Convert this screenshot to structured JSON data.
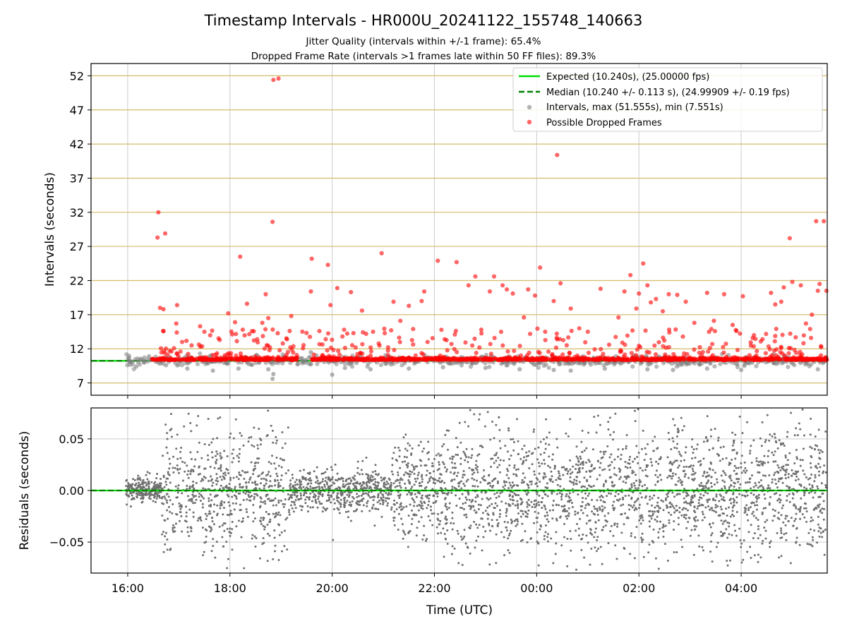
{
  "figure": {
    "title": "Timestamp Intervals - HR000U_20241122_155748_140663",
    "subtitle_1": "Jitter Quality (intervals within +/-1 frame): 65.4%",
    "subtitle_2": "Dropped Frame Rate (intervals >1 frames late within 50 FF files): 89.3%"
  },
  "colors": {
    "expected": "#00e000",
    "median": "#007f00",
    "intervals": "#808080",
    "dropped": "#ff0000",
    "hgrid_top": "#d4bc6a",
    "vgrid": "#cccccc",
    "residual": "#6f6f6f"
  },
  "chart_data": [
    {
      "type": "scatter",
      "panel": "top",
      "ylabel": "Intervals (seconds)",
      "xlim": [
        "15:17",
        "05:41"
      ],
      "ylim": [
        5.2,
        53.8
      ],
      "yticks": [
        "7",
        "12",
        "17",
        "22",
        "27",
        "32",
        "37",
        "42",
        "47",
        "52"
      ],
      "xticks": [
        "16:00",
        "18:00",
        "20:00",
        "22:00",
        "00:00",
        "02:00",
        "04:00"
      ],
      "grid": "horizontal and vertical",
      "legend_position": "top-right",
      "legend": [
        "Expected (10.240s), (25.00000 fps)",
        "Median (10.240 +/- 0.113 s), (24.99909 +/- 0.19 fps)",
        "Intervals, max (51.555s), min (7.551s)",
        "Possible Dropped Frames"
      ],
      "series": [
        {
          "name": "Expected (10.240s), (25.00000 fps)",
          "kind": "hline",
          "y": 10.24
        },
        {
          "name": "Median (10.240 +/- 0.113 s), (24.99909 +/- 0.19 fps)",
          "kind": "hline-dashed",
          "y": 10.24
        },
        {
          "name": "Intervals, max (51.555s), min (7.551s)",
          "kind": "scatter",
          "note": "dense band of points near 10.24 s with spread from ~8 to ~11.5 s",
          "points": [
            [
              "16:10",
              9.4
            ],
            [
              "16:25",
              10.9
            ],
            [
              "16:45",
              9.6
            ],
            [
              "17:10",
              9.1
            ],
            [
              "17:40",
              8.8
            ],
            [
              "18:10",
              9.1
            ],
            [
              "18:45",
              9.0
            ],
            [
              "18:50",
              7.6
            ],
            [
              "18:51",
              8.3
            ],
            [
              "19:20",
              9.8
            ],
            [
              "19:35",
              11.5
            ],
            [
              "20:00",
              8.2
            ],
            [
              "20:15",
              9.2
            ],
            [
              "20:45",
              9.0
            ],
            [
              "21:30",
              9.1
            ],
            [
              "22:10",
              9.3
            ],
            [
              "23:00",
              9.2
            ],
            [
              "23:40",
              9.0
            ],
            [
              "00:20",
              8.9
            ],
            [
              "00:40",
              8.8
            ],
            [
              "01:20",
              9.1
            ],
            [
              "02:10",
              9.0
            ],
            [
              "02:40",
              8.9
            ],
            [
              "03:20",
              9.1
            ],
            [
              "04:00",
              8.9
            ],
            [
              "05:30",
              9.0
            ]
          ]
        },
        {
          "name": "Possible Dropped Frames",
          "kind": "scatter",
          "points": [
            [
              "16:36",
              32.0
            ],
            [
              "16:35",
              28.3
            ],
            [
              "16:44",
              28.9
            ],
            [
              "16:38",
              18.0
            ],
            [
              "16:42",
              17.8
            ],
            [
              "16:58",
              18.4
            ],
            [
              "16:57",
              15.7
            ],
            [
              "17:15",
              12.5
            ],
            [
              "17:25",
              15.3
            ],
            [
              "17:30",
              14.5
            ],
            [
              "17:48",
              13.3
            ],
            [
              "17:58",
              17.2
            ],
            [
              "18:06",
              15.9
            ],
            [
              "18:15",
              14.8
            ],
            [
              "18:38",
              15.8
            ],
            [
              "18:12",
              25.5
            ],
            [
              "18:20",
              18.6
            ],
            [
              "18:26",
              14.6
            ],
            [
              "18:32",
              13.4
            ],
            [
              "18:42",
              20.0
            ],
            [
              "18:50",
              30.6
            ],
            [
              "18:45",
              16.5
            ],
            [
              "18:47",
              12.2
            ],
            [
              "18:51",
              51.4
            ],
            [
              "18:57",
              51.6
            ],
            [
              "19:12",
              16.8
            ],
            [
              "19:36",
              25.2
            ],
            [
              "19:35",
              20.4
            ],
            [
              "19:45",
              14.6
            ],
            [
              "19:55",
              24.3
            ],
            [
              "19:58",
              18.4
            ],
            [
              "20:06",
              20.9
            ],
            [
              "20:12",
              13.8
            ],
            [
              "20:22",
              20.3
            ],
            [
              "20:25",
              14.3
            ],
            [
              "20:35",
              17.6
            ],
            [
              "20:48",
              14.5
            ],
            [
              "20:58",
              26.0
            ],
            [
              "21:12",
              18.9
            ],
            [
              "21:20",
              16.1
            ],
            [
              "21:30",
              18.3
            ],
            [
              "21:35",
              14.9
            ],
            [
              "21:45",
              19.0
            ],
            [
              "21:48",
              20.4
            ],
            [
              "22:04",
              24.9
            ],
            [
              "22:12",
              13.4
            ],
            [
              "22:20",
              12.7
            ],
            [
              "22:26",
              24.7
            ],
            [
              "22:40",
              21.3
            ],
            [
              "22:48",
              22.6
            ],
            [
              "22:55",
              14.8
            ],
            [
              "23:05",
              20.4
            ],
            [
              "23:10",
              22.6
            ],
            [
              "23:20",
              21.3
            ],
            [
              "23:25",
              20.7
            ],
            [
              "23:32",
              20.1
            ],
            [
              "23:45",
              16.6
            ],
            [
              "23:50",
              20.7
            ],
            [
              "23:58",
              19.8
            ],
            [
              "00:04",
              23.9
            ],
            [
              "00:10",
              14.5
            ],
            [
              "00:20",
              19.0
            ],
            [
              "00:24",
              40.4
            ],
            [
              "00:28",
              21.6
            ],
            [
              "00:40",
              17.9
            ],
            [
              "00:50",
              15.0
            ],
            [
              "01:00",
              14.5
            ],
            [
              "01:15",
              20.8
            ],
            [
              "01:25",
              12.6
            ],
            [
              "01:36",
              16.6
            ],
            [
              "01:43",
              20.4
            ],
            [
              "01:50",
              22.8
            ],
            [
              "01:57",
              17.9
            ],
            [
              "02:00",
              20.1
            ],
            [
              "02:05",
              24.5
            ],
            [
              "02:10",
              21.3
            ],
            [
              "02:14",
              18.8
            ],
            [
              "02:20",
              19.3
            ],
            [
              "02:28",
              17.5
            ],
            [
              "02:35",
              20.0
            ],
            [
              "02:45",
              19.9
            ],
            [
              "02:55",
              18.9
            ],
            [
              "03:05",
              15.8
            ],
            [
              "03:20",
              20.2
            ],
            [
              "03:28",
              16.1
            ],
            [
              "03:40",
              20.0
            ],
            [
              "03:50",
              15.5
            ],
            [
              "04:02",
              19.7
            ],
            [
              "04:15",
              14.0
            ],
            [
              "04:25",
              13.4
            ],
            [
              "04:35",
              20.2
            ],
            [
              "04:40",
              18.5
            ],
            [
              "04:47",
              18.9
            ],
            [
              "04:50",
              21.0
            ],
            [
              "04:57",
              28.2
            ],
            [
              "05:00",
              21.8
            ],
            [
              "05:10",
              21.3
            ],
            [
              "05:16",
              15.7
            ],
            [
              "05:23",
              17.0
            ],
            [
              "05:28",
              30.7
            ],
            [
              "05:30",
              20.5
            ],
            [
              "05:32",
              21.5
            ],
            [
              "05:37",
              30.7
            ],
            [
              "05:40",
              20.5
            ]
          ]
        }
      ]
    },
    {
      "type": "scatter",
      "panel": "bottom",
      "xlabel": "Time (UTC)",
      "ylabel": "Residuals (seconds)",
      "xlim": [
        "15:17",
        "05:41"
      ],
      "ylim": [
        -0.08,
        0.08
      ],
      "yticks": [
        "0.05",
        "0.00",
        "−0.05"
      ],
      "xticks": [
        "16:00",
        "18:00",
        "20:00",
        "22:00",
        "00:00",
        "02:00",
        "04:00"
      ],
      "grid": "horizontal and vertical",
      "series": [
        {
          "name": "",
          "kind": "hline",
          "y": 0.0
        },
        {
          "name": "",
          "kind": "scatter-cloud",
          "note": "dense residual scatter roughly spanning -0.08 to +0.08 s across the full time range, tighter around 0 from 16:00 to 16:40 and 19:00 to 21:00",
          "count": 3600
        }
      ]
    }
  ]
}
